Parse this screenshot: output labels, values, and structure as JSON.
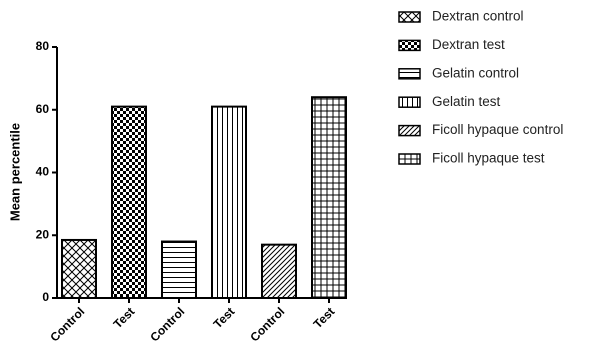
{
  "chart_data": {
    "type": "bar",
    "ylabel": "Mean percentile",
    "categories": [
      "Control",
      "Test",
      "Control",
      "Test",
      "Control",
      "Test"
    ],
    "values": [
      18.5,
      61,
      18,
      61,
      17,
      64
    ],
    "legend": [
      "Dextran control",
      "Dextran test",
      "Gelatin control",
      "Gelatin test",
      "Ficoll hypaque control",
      "Ficoll hypaque test"
    ],
    "patterns": [
      "crosshatch",
      "checker",
      "horizontal",
      "vertical",
      "diagonal",
      "grid"
    ],
    "ylim": [
      0,
      80
    ],
    "yticks": [
      0,
      20,
      40,
      60,
      80
    ],
    "grid": false
  }
}
